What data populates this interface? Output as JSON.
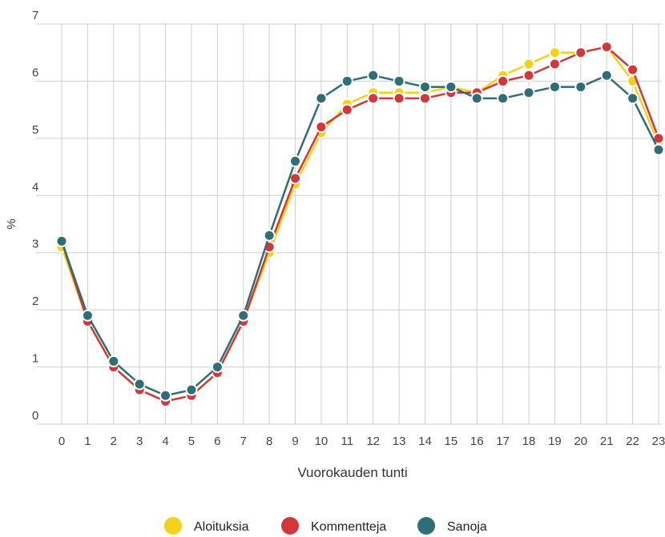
{
  "chart_data": {
    "type": "line",
    "title": "",
    "xlabel": "Vuorokauden tunti",
    "ylabel": "%",
    "x": [
      0,
      1,
      2,
      3,
      4,
      5,
      6,
      7,
      8,
      9,
      10,
      11,
      12,
      13,
      14,
      15,
      16,
      17,
      18,
      19,
      20,
      21,
      22,
      23
    ],
    "x_tick_labels": [
      "0",
      "1",
      "2",
      "3",
      "4",
      "5",
      "6",
      "7",
      "8",
      "9",
      "10",
      "11",
      "12",
      "13",
      "14",
      "15",
      "16",
      "17",
      "18",
      "19",
      "20",
      "21",
      "22",
      "23"
    ],
    "y_tick_labels": [
      "0",
      "1",
      "2",
      "3",
      "4",
      "5",
      "6",
      "7"
    ],
    "ylim": [
      0,
      7
    ],
    "xlim": [
      0,
      23
    ],
    "grid": true,
    "legend_position": "bottom-center",
    "series": [
      {
        "name": "Aloituksia",
        "color": "#f5d21a",
        "values": [
          3.1,
          1.8,
          1.0,
          0.6,
          0.4,
          0.5,
          0.9,
          1.8,
          3.0,
          4.2,
          5.1,
          5.6,
          5.8,
          5.8,
          5.8,
          5.9,
          5.8,
          6.1,
          6.3,
          6.5,
          6.5,
          6.6,
          6.0,
          4.9
        ]
      },
      {
        "name": "Kommentteja",
        "color": "#d2383b",
        "values": [
          3.2,
          1.8,
          1.0,
          0.6,
          0.4,
          0.5,
          0.9,
          1.8,
          3.1,
          4.3,
          5.2,
          5.5,
          5.7,
          5.7,
          5.7,
          5.8,
          5.8,
          6.0,
          6.1,
          6.3,
          6.5,
          6.6,
          6.2,
          5.0
        ]
      },
      {
        "name": "Sanoja",
        "color": "#2e6e74",
        "values": [
          3.2,
          1.9,
          1.1,
          0.7,
          0.5,
          0.6,
          1.0,
          1.9,
          3.3,
          4.6,
          5.7,
          6.0,
          6.1,
          6.0,
          5.9,
          5.9,
          5.7,
          5.7,
          5.8,
          5.9,
          5.9,
          6.1,
          5.7,
          4.8
        ]
      }
    ]
  }
}
